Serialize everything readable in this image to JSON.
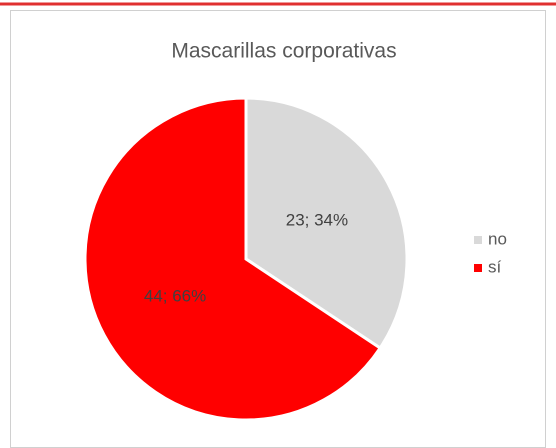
{
  "chart_data": {
    "type": "pie",
    "title": "Mascarillas corporativas",
    "categories": [
      "no",
      "sí"
    ],
    "values": [
      23,
      44
    ],
    "value_labels": [
      "23; 34%",
      "44; 66%"
    ],
    "colors": [
      "#d9d9d9",
      "#ff0000"
    ],
    "legend": "right"
  }
}
